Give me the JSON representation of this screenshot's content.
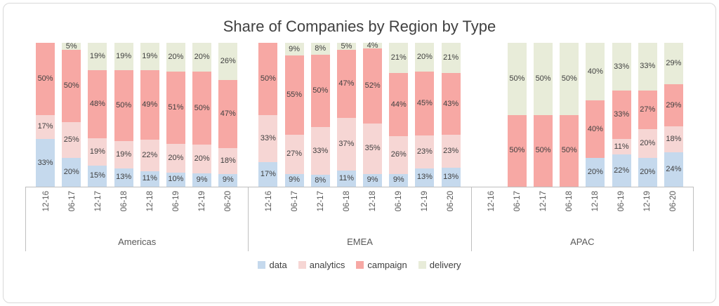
{
  "chart_data": {
    "type": "bar",
    "stacked": true,
    "orientation": "vertical",
    "title": "Share of Companies by Region by Type",
    "value_unit": "percent",
    "ylim": [
      0,
      100
    ],
    "grid": false,
    "legend_position": "bottom",
    "categories_periods": [
      "12-16",
      "06-17",
      "12-17",
      "06-18",
      "12-18",
      "06-19",
      "12-19",
      "06-20"
    ],
    "series_order": [
      "data",
      "analytics",
      "campaign",
      "delivery"
    ],
    "colors": {
      "data": "#c5d9ed",
      "analytics": "#f6d6d4",
      "campaign": "#f7a8a4",
      "delivery": "#e8ecd9"
    },
    "groups": [
      {
        "region": "Americas",
        "bars": [
          {
            "period": "12-16",
            "data": 33,
            "analytics": 17,
            "campaign": 50,
            "delivery": 0
          },
          {
            "period": "06-17",
            "data": 20,
            "analytics": 25,
            "campaign": 50,
            "delivery": 5
          },
          {
            "period": "12-17",
            "data": 15,
            "analytics": 19,
            "campaign": 48,
            "delivery": 19
          },
          {
            "period": "06-18",
            "data": 13,
            "analytics": 19,
            "campaign": 50,
            "delivery": 19
          },
          {
            "period": "12-18",
            "data": 11,
            "analytics": 22,
            "campaign": 49,
            "delivery": 19
          },
          {
            "period": "06-19",
            "data": 10,
            "analytics": 20,
            "campaign": 51,
            "delivery": 20
          },
          {
            "period": "12-19",
            "data": 9,
            "analytics": 20,
            "campaign": 50,
            "delivery": 20
          },
          {
            "period": "06-20",
            "data": 9,
            "analytics": 18,
            "campaign": 47,
            "delivery": 26
          }
        ]
      },
      {
        "region": "EMEA",
        "bars": [
          {
            "period": "12-16",
            "data": 17,
            "analytics": 33,
            "campaign": 50,
            "delivery": 0
          },
          {
            "period": "06-17",
            "data": 9,
            "analytics": 27,
            "campaign": 55,
            "delivery": 9
          },
          {
            "period": "12-17",
            "data": 8,
            "analytics": 33,
            "campaign": 50,
            "delivery": 8
          },
          {
            "period": "06-18",
            "data": 11,
            "analytics": 37,
            "campaign": 47,
            "delivery": 5
          },
          {
            "period": "12-18",
            "data": 9,
            "analytics": 35,
            "campaign": 52,
            "delivery": 4
          },
          {
            "period": "06-19",
            "data": 9,
            "analytics": 26,
            "campaign": 44,
            "delivery": 21
          },
          {
            "period": "12-19",
            "data": 13,
            "analytics": 23,
            "campaign": 45,
            "delivery": 20
          },
          {
            "period": "06-20",
            "data": 13,
            "analytics": 23,
            "campaign": 43,
            "delivery": 21
          }
        ]
      },
      {
        "region": "APAC",
        "bars": [
          {
            "period": "12-16",
            "data": null,
            "analytics": null,
            "campaign": null,
            "delivery": null
          },
          {
            "period": "06-17",
            "data": 0,
            "analytics": 0,
            "campaign": 50,
            "delivery": 50
          },
          {
            "period": "12-17",
            "data": 0,
            "analytics": 0,
            "campaign": 50,
            "delivery": 50
          },
          {
            "period": "06-18",
            "data": 0,
            "analytics": 0,
            "campaign": 50,
            "delivery": 50
          },
          {
            "period": "12-18",
            "data": 20,
            "analytics": 0,
            "campaign": 40,
            "delivery": 40
          },
          {
            "period": "06-19",
            "data": 22,
            "analytics": 11,
            "campaign": 33,
            "delivery": 33
          },
          {
            "period": "12-19",
            "data": 20,
            "analytics": 20,
            "campaign": 27,
            "delivery": 33
          },
          {
            "period": "06-20",
            "data": 24,
            "analytics": 18,
            "campaign": 29,
            "delivery": 29
          }
        ]
      }
    ]
  },
  "legend": {
    "items": [
      {
        "label": "data",
        "color": "#c5d9ed"
      },
      {
        "label": "analytics",
        "color": "#f6d6d4"
      },
      {
        "label": "campaign",
        "color": "#f7a8a4"
      },
      {
        "label": "delivery",
        "color": "#e8ecd9"
      }
    ]
  }
}
